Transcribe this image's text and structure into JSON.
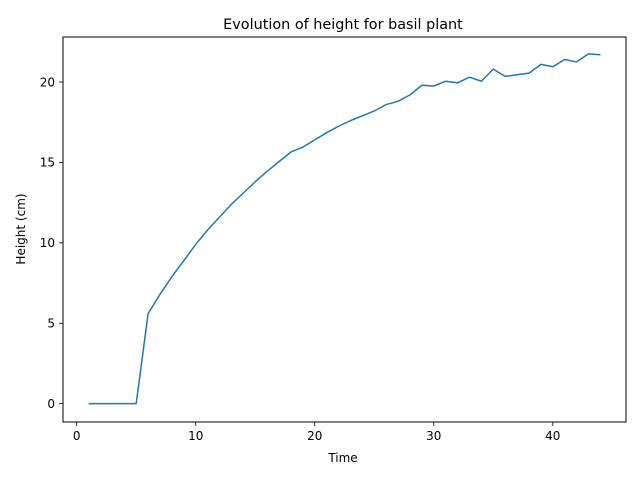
{
  "chart_data": {
    "type": "line",
    "title": "Evolution of height for basil plant",
    "xlabel": "Time",
    "ylabel": "Height (cm)",
    "xlim": [
      -1.15,
      46.15
    ],
    "ylim": [
      -1.14,
      22.8
    ],
    "xticks": [
      0,
      10,
      20,
      30,
      40
    ],
    "yticks": [
      0,
      5,
      10,
      15,
      20
    ],
    "grid": false,
    "series": [
      {
        "color": "#1f77b4",
        "x": [
          1,
          2,
          3,
          4,
          5,
          6,
          7,
          8,
          9,
          10,
          11,
          12,
          13,
          14,
          15,
          16,
          17,
          18,
          19,
          20,
          21,
          22,
          23,
          24,
          25,
          26,
          27,
          28,
          29,
          30,
          31,
          32,
          33,
          34,
          35,
          36,
          37,
          38,
          39,
          40,
          41,
          42,
          43,
          44
        ],
        "y": [
          0,
          0,
          0,
          0,
          0,
          5.6,
          6.8,
          7.9,
          8.9,
          9.9,
          10.8,
          11.6,
          12.4,
          13.1,
          13.8,
          14.45,
          15.05,
          15.65,
          15.95,
          16.4,
          16.85,
          17.25,
          17.6,
          17.9,
          18.2,
          18.6,
          18.8,
          19.2,
          19.8,
          19.75,
          20.05,
          19.95,
          20.3,
          20.05,
          20.8,
          20.35,
          20.45,
          20.55,
          21.1,
          20.95,
          21.4,
          21.25,
          21.75,
          21.7
        ]
      }
    ]
  }
}
